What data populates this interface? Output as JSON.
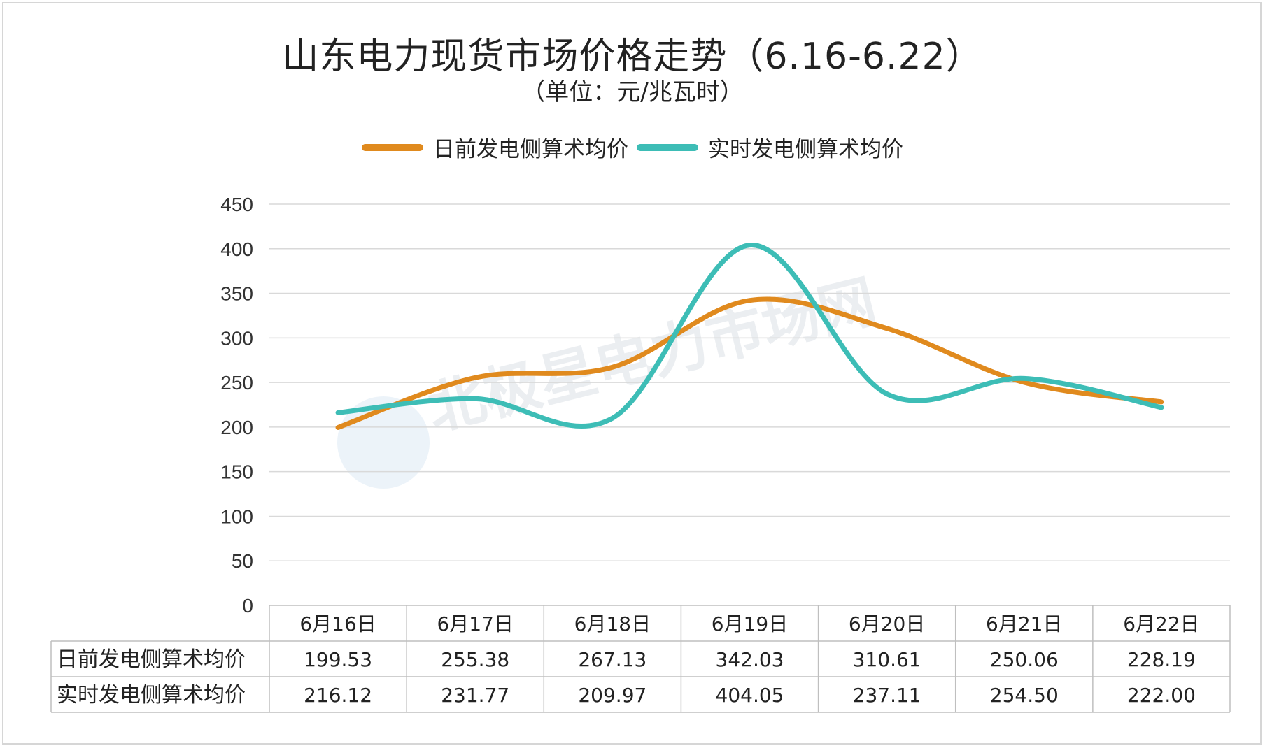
{
  "chart_data": {
    "type": "line",
    "title": "山东电力现货市场价格走势（6.16-6.22）",
    "subtitle": "（单位：元/兆瓦时）",
    "categories": [
      "6月16日",
      "6月17日",
      "6月18日",
      "6月19日",
      "6月20日",
      "6月21日",
      "6月22日"
    ],
    "series": [
      {
        "name": "日前发电侧算术均价",
        "color": "#E08A1E",
        "values": [
          199.53,
          255.38,
          267.13,
          342.03,
          310.61,
          250.06,
          228.19
        ],
        "labels": [
          "199.53",
          "255.38",
          "267.13",
          "342.03",
          "310.61",
          "250.06",
          "228.19"
        ]
      },
      {
        "name": "实时发电侧算术均价",
        "color": "#3DBDB6",
        "values": [
          216.12,
          231.77,
          209.97,
          404.05,
          237.11,
          254.5,
          222.0
        ],
        "labels": [
          "216.12",
          "231.77",
          "209.97",
          "404.05",
          "237.11",
          "254.50",
          "222.00"
        ]
      }
    ],
    "ylim": [
      0,
      450
    ],
    "yticks": [
      0,
      50,
      100,
      150,
      200,
      250,
      300,
      350,
      400,
      450
    ],
    "grid": true,
    "smooth": true,
    "legend_position": "top-center",
    "data_table": true
  },
  "watermark": "北极星电力市场网"
}
